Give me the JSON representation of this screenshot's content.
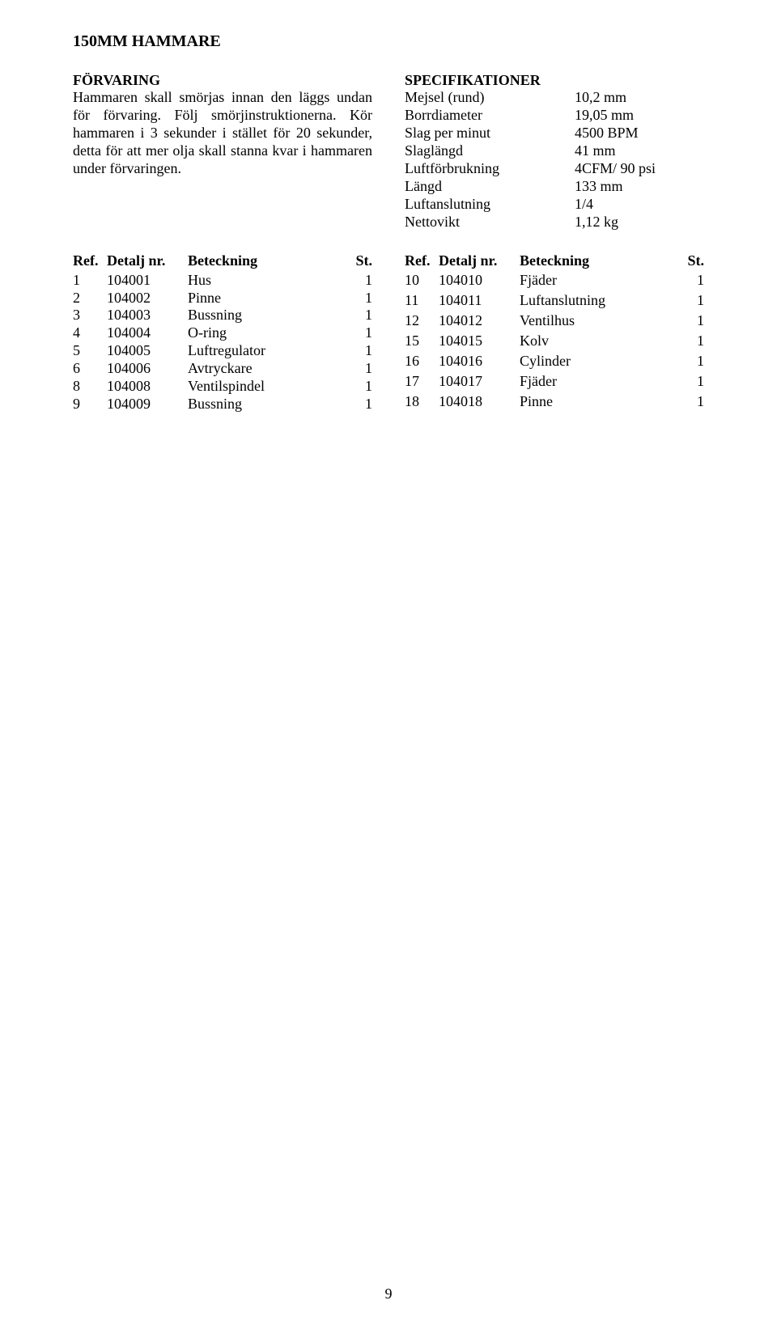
{
  "title": "150MM HAMMARE",
  "storage": {
    "heading": "FÖRVARING",
    "text": "Hammaren skall smörjas innan den läggs undan för förvaring. Följ smörjinstruktionerna. Kör hammaren i 3 sekunder i stället för 20 sekunder, detta för att mer olja skall stanna kvar i hammaren under förvaringen."
  },
  "specs": {
    "heading": "SPECIFIKATIONER",
    "rows": [
      {
        "label": "Mejsel (rund)",
        "value": "10,2 mm"
      },
      {
        "label": "Borrdiameter",
        "value": "19,05 mm"
      },
      {
        "label": "Slag per minut",
        "value": "4500 BPM"
      },
      {
        "label": "Slaglängd",
        "value": "41 mm"
      },
      {
        "label": "Luftförbrukning",
        "value": "4CFM/ 90 psi"
      },
      {
        "label": "Längd",
        "value": "133 mm"
      },
      {
        "label": "Luftanslutning",
        "value": "1/4"
      },
      {
        "label": "Nettovikt",
        "value": "1,12 kg"
      }
    ]
  },
  "parts_header": {
    "ref": "Ref.",
    "nr": "Detalj nr.",
    "desc": "Beteckning",
    "st": "St."
  },
  "parts_left": [
    {
      "ref": "1",
      "nr": "104001",
      "desc": "Hus",
      "st": "1"
    },
    {
      "ref": "2",
      "nr": "104002",
      "desc": "Pinne",
      "st": "1"
    },
    {
      "ref": "3",
      "nr": "104003",
      "desc": "Bussning",
      "st": "1"
    },
    {
      "ref": "4",
      "nr": "104004",
      "desc": "O-ring",
      "st": "1"
    },
    {
      "ref": "5",
      "nr": "104005",
      "desc": "Luftregulator",
      "st": "1"
    },
    {
      "ref": "6",
      "nr": "104006",
      "desc": "Avtryckare",
      "st": "1"
    },
    {
      "ref": "8",
      "nr": "104008",
      "desc": "Ventilspindel",
      "st": "1"
    },
    {
      "ref": "9",
      "nr": "104009",
      "desc": "Bussning",
      "st": "1"
    }
  ],
  "parts_right": [
    {
      "ref": "10",
      "nr": "104010",
      "desc": "Fjäder",
      "st": "1"
    },
    {
      "ref": "11",
      "nr": "104011",
      "desc": "Luftanslutning",
      "st": "1"
    },
    {
      "ref": "12",
      "nr": "104012",
      "desc": "Ventilhus",
      "st": "1"
    },
    {
      "ref": "15",
      "nr": "104015",
      "desc": "Kolv",
      "st": "1"
    },
    {
      "ref": "16",
      "nr": "104016",
      "desc": "Cylinder",
      "st": "1"
    },
    {
      "ref": "17",
      "nr": "104017",
      "desc": "Fjäder",
      "st": "1"
    },
    {
      "ref": "18",
      "nr": "104018",
      "desc": "Pinne",
      "st": "1"
    }
  ],
  "page_number": "9"
}
